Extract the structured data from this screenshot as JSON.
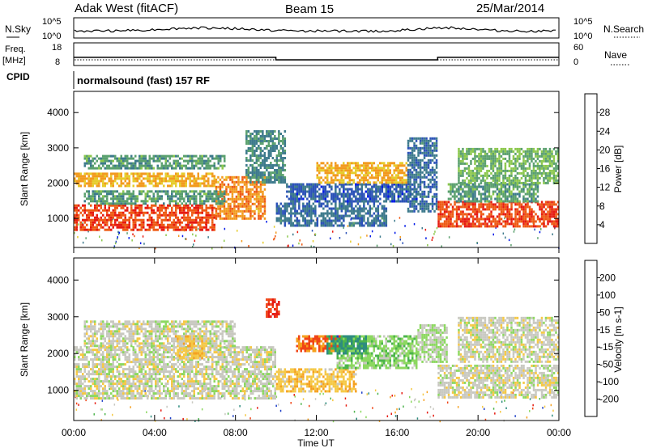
{
  "header": {
    "title": "Adak West (fitACF)",
    "beam": "Beam 15",
    "date": "25/Mar/2014"
  },
  "noise_panel": {
    "left_label": "N.Sky",
    "left_ticks": [
      "10^5",
      "10^0"
    ],
    "right_label": "N.Search",
    "right_ticks": [
      "10^5",
      "10^0"
    ]
  },
  "freq_panel": {
    "left_label_line1": "Freq.",
    "left_label_line2": "[MHz]",
    "left_ticks": [
      "18",
      "8"
    ],
    "right_label": "Nave",
    "right_ticks": [
      "60",
      "0"
    ],
    "freq_mhz": {
      "x_hours": [
        0,
        10,
        10,
        18,
        18,
        24
      ],
      "values": [
        11.5,
        11.5,
        10.3,
        10.3,
        11.5,
        11.5
      ]
    }
  },
  "cpid": {
    "label": "CPID",
    "text": "normalsound (fast) 157 RF"
  },
  "time_axis": {
    "label": "Time UT",
    "ticks": [
      "00:00",
      "04:00",
      "08:00",
      "12:00",
      "16:00",
      "20:00",
      "00:00"
    ],
    "range_hours": [
      0,
      24
    ]
  },
  "range_axis": {
    "label": "Slant Range [km]",
    "ticks": [
      "4000",
      "3000",
      "2000",
      "1000"
    ],
    "range_km": [
      180,
      4600
    ]
  },
  "chart_data": [
    {
      "type": "heatmap",
      "name": "power",
      "colorbar_label": "Power [dB]",
      "colorbar_ticks": [
        "28",
        "24",
        "20",
        "16",
        "12",
        "8",
        "4"
      ],
      "value_range": [
        0,
        32
      ],
      "colors": [
        "#0018e8",
        "#2b52b8",
        "#3d7a8c",
        "#5aa06e",
        "#8cc84c",
        "#e6cc2c",
        "#f29a1e",
        "#ee5a14",
        "#e61a10"
      ],
      "regions": [
        {
          "x_hours": [
            0.0,
            7.0
          ],
          "y_km": [
            700,
            1400
          ],
          "value": 28
        },
        {
          "x_hours": [
            7.0,
            9.5
          ],
          "y_km": [
            1000,
            2200
          ],
          "value": 24
        },
        {
          "x_hours": [
            0.0,
            7.0
          ],
          "y_km": [
            1900,
            2300
          ],
          "value": 22
        },
        {
          "x_hours": [
            0.5,
            7.5
          ],
          "y_km": [
            1450,
            1800
          ],
          "value": 12
        },
        {
          "x_hours": [
            0.5,
            7.5
          ],
          "y_km": [
            2400,
            2800
          ],
          "value": 12
        },
        {
          "x_hours": [
            8.5,
            10.5
          ],
          "y_km": [
            2000,
            3500
          ],
          "value": 10
        },
        {
          "x_hours": [
            10.0,
            15.5
          ],
          "y_km": [
            800,
            1450
          ],
          "value": 8
        },
        {
          "x_hours": [
            10.5,
            17.0
          ],
          "y_km": [
            1500,
            2000
          ],
          "value": 6
        },
        {
          "x_hours": [
            12.0,
            16.5
          ],
          "y_km": [
            2000,
            2600
          ],
          "value": 22
        },
        {
          "x_hours": [
            16.5,
            18.0
          ],
          "y_km": [
            1200,
            3300
          ],
          "value": 8
        },
        {
          "x_hours": [
            18.0,
            24.0
          ],
          "y_km": [
            750,
            1500
          ],
          "value": 28
        },
        {
          "x_hours": [
            18.5,
            23.0
          ],
          "y_km": [
            1500,
            2000
          ],
          "value": 12
        },
        {
          "x_hours": [
            19.0,
            24.0
          ],
          "y_km": [
            2000,
            3000
          ],
          "value": 14
        }
      ]
    },
    {
      "type": "heatmap",
      "name": "velocity",
      "colorbar_label": "Velocity [m s-1]",
      "colorbar_ticks": [
        "200",
        "100",
        "50",
        "15",
        "-15",
        "-50",
        "-100",
        "-200"
      ],
      "value_range": [
        -250,
        250
      ],
      "colors": [
        "#e61a10",
        "#f04416",
        "#f5a01e",
        "#f5c844",
        "#c8c8c0",
        "#8cd860",
        "#4cb44c",
        "#2e8c7e",
        "#1e40c8"
      ],
      "regions": [
        {
          "x_hours": [
            0.0,
            10.0
          ],
          "y_km": [
            800,
            2200
          ],
          "value": 0
        },
        {
          "x_hours": [
            0.5,
            8.0
          ],
          "y_km": [
            2200,
            2900
          ],
          "value": 0
        },
        {
          "x_hours": [
            5.0,
            6.5
          ],
          "y_km": [
            1900,
            2500
          ],
          "value": -60
        },
        {
          "x_hours": [
            9.5,
            10.2
          ],
          "y_km": [
            3000,
            3500
          ],
          "value": -200
        },
        {
          "x_hours": [
            10.0,
            14.0
          ],
          "y_km": [
            1000,
            1600
          ],
          "value": -60
        },
        {
          "x_hours": [
            11.0,
            13.5
          ],
          "y_km": [
            2100,
            2500
          ],
          "value": -150
        },
        {
          "x_hours": [
            13.0,
            17.0
          ],
          "y_km": [
            1600,
            2500
          ],
          "value": 60
        },
        {
          "x_hours": [
            12.5,
            14.5
          ],
          "y_km": [
            2000,
            2500
          ],
          "value": 150
        },
        {
          "x_hours": [
            17.0,
            18.5
          ],
          "y_km": [
            1800,
            2800
          ],
          "value": 30
        },
        {
          "x_hours": [
            18.0,
            24.0
          ],
          "y_km": [
            800,
            1700
          ],
          "value": 0
        },
        {
          "x_hours": [
            19.0,
            24.0
          ],
          "y_km": [
            1800,
            3000
          ],
          "value": 0
        }
      ]
    }
  ]
}
